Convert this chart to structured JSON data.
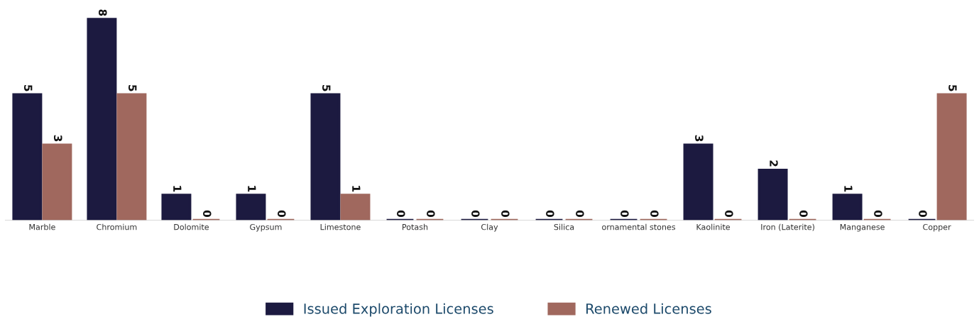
{
  "chart_data": {
    "type": "bar",
    "categories": [
      "Marble",
      "Chromium",
      "Dolomite",
      "Gypsum",
      "Limestone",
      "Potash",
      "Clay",
      "Silica",
      "ornamental stones",
      "Kaolinite",
      "Iron (Laterite)",
      "Manganese",
      "Copper"
    ],
    "series": [
      {
        "name": "Issued Exploration Licenses",
        "color": "#1c1a40",
        "values": [
          5,
          8,
          1,
          1,
          5,
          0,
          0,
          0,
          0,
          3,
          2,
          1,
          0
        ]
      },
      {
        "name": "Renewed Licenses",
        "color": "#a0685e",
        "values": [
          3,
          5,
          0,
          0,
          1,
          0,
          0,
          0,
          0,
          0,
          0,
          0,
          5
        ]
      }
    ],
    "data_labels": true,
    "tick_labels": "x",
    "grid": false,
    "legend": "bottom"
  }
}
